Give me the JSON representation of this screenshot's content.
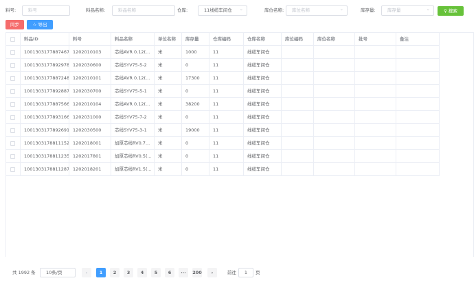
{
  "filters": [
    {
      "label": "料号:",
      "placeholder": "料号"
    },
    {
      "label": "料品名称:",
      "placeholder": "料品名称"
    },
    {
      "label": "仓库:",
      "value": "11线缆车间仓"
    },
    {
      "label": "库位名称:",
      "placeholder": "库位名称"
    },
    {
      "label": "库存量:",
      "placeholder": "库存量"
    }
  ],
  "search_button": "搜索",
  "sync_button": "同步",
  "export_button": "导出",
  "table": {
    "columns": [
      "料品ID",
      "料号",
      "料品名称",
      "单位名称",
      "库存量",
      "仓库编码",
      "仓库名称",
      "库位编码",
      "库位名称",
      "批号",
      "备注"
    ],
    "rows": [
      [
        "1001303177887467",
        "1202010103",
        "芯线AVR 0.12(...",
        "米",
        "1000",
        "11",
        "线缆车间仓"
      ],
      [
        "1001303177892978",
        "1202030600",
        "芯线SYV75-5-2",
        "米",
        "0",
        "11",
        "线缆车间仓"
      ],
      [
        "1001303177887248",
        "1202010101",
        "芯线AVR 0.12(...",
        "米",
        "17300",
        "11",
        "线缆车间仓"
      ],
      [
        "1001303177892887",
        "1202030700",
        "芯线SYV75-5-1",
        "米",
        "0",
        "11",
        "线缆车间仓"
      ],
      [
        "1001303177887566",
        "1202010104",
        "芯线AVR 0.12(...",
        "米",
        "38200",
        "11",
        "线缆车间仓"
      ],
      [
        "1001303177893166",
        "1202031000",
        "芯线SYV75-7-2",
        "米",
        "0",
        "11",
        "线缆车间仓"
      ],
      [
        "1001303177892691",
        "1202030500",
        "芯线SYV75-3-1",
        "米",
        "19000",
        "11",
        "线缆车间仓"
      ],
      [
        "1001303178811152",
        "1202018001",
        "加厚芯线RV0.7...",
        "米",
        "0",
        "11",
        "线缆车间仓"
      ],
      [
        "1001303178811235",
        "1202017801",
        "加厚芯线RV0.5(...",
        "米",
        "0",
        "11",
        "线缆车间仓"
      ],
      [
        "1001303178811287",
        "1202018201",
        "加厚芯线RV1.5(...",
        "米",
        "0",
        "11",
        "线缆车间仓"
      ]
    ]
  },
  "pagination": {
    "total": "共 1992 条",
    "page_size": "10条/页",
    "pages": [
      "1",
      "2",
      "3",
      "4",
      "5",
      "6",
      "···",
      "200"
    ],
    "goto_label": "前往",
    "goto_value": "1",
    "goto_suffix": "页"
  }
}
